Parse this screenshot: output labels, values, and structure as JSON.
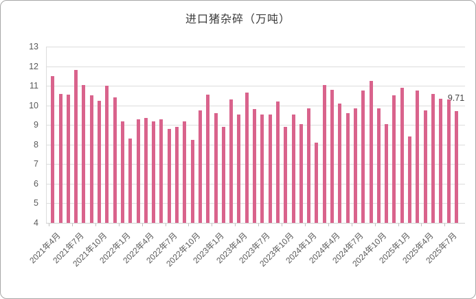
{
  "chart_data": {
    "type": "bar",
    "title": "进口猪杂碎（万吨）",
    "x": [
      "2021年4月",
      "2021年5月",
      "2021年6月",
      "2021年7月",
      "2021年8月",
      "2021年9月",
      "2021年10月",
      "2021年11月",
      "2021年12月",
      "2022年1月",
      "2022年2月",
      "2022年3月",
      "2022年4月",
      "2022年5月",
      "2022年6月",
      "2022年7月",
      "2022年8月",
      "2022年9月",
      "2022年10月",
      "2022年11月",
      "2022年12月",
      "2023年1月",
      "2023年2月",
      "2023年3月",
      "2023年4月",
      "2023年5月",
      "2023年6月",
      "2023年7月",
      "2023年8月",
      "2023年9月",
      "2023年10月",
      "2023年11月",
      "2023年12月",
      "2024年1月",
      "2024年2月",
      "2024年3月",
      "2024年4月",
      "2024年5月",
      "2024年6月",
      "2024年7月",
      "2024年8月",
      "2024年9月",
      "2024年10月",
      "2024年11月",
      "2024年12月",
      "2025年1月",
      "2025年2月",
      "2025年3月",
      "2025年4月",
      "2025年5月",
      "2025年6月",
      "2025年7月",
      "2025年8月"
    ],
    "values": [
      11.5,
      10.6,
      10.55,
      11.8,
      11.05,
      10.5,
      10.25,
      11.0,
      10.4,
      9.2,
      8.3,
      9.3,
      9.35,
      9.2,
      9.3,
      8.8,
      8.9,
      9.2,
      8.25,
      9.75,
      10.55,
      9.6,
      8.9,
      10.3,
      9.55,
      10.65,
      9.8,
      9.55,
      9.55,
      10.2,
      8.9,
      9.55,
      9.05,
      9.85,
      8.1,
      11.05,
      10.8,
      10.1,
      9.6,
      9.85,
      10.75,
      11.25,
      9.85,
      9.05,
      10.5,
      10.9,
      8.4,
      10.75,
      9.75,
      10.6,
      10.35,
      10.3,
      9.71
    ],
    "x_tick_labels": [
      "2021年4月",
      "2021年7月",
      "2021年10月",
      "2022年1月",
      "2022年4月",
      "2022年7月",
      "2022年10月",
      "2023年1月",
      "2023年4月",
      "2023年7月",
      "2023年10月",
      "2024年1月",
      "2024年4月",
      "2024年7月",
      "2024年10月",
      "2025年1月",
      "2025年4月",
      "2025年7月"
    ],
    "x_tick_every": 3,
    "ylim": [
      4,
      13
    ],
    "y_ticks": [
      4,
      5,
      6,
      7,
      8,
      9,
      10,
      11,
      12,
      13
    ],
    "grid": true,
    "legend": false,
    "last_point_label": "9.71",
    "colors": {
      "bar": "#d9638c",
      "gridline": "#dcdcdc",
      "axis_line": "#cfcfcf",
      "tick_mark": "#bfbfbf",
      "tick_label": "#595959",
      "title": "#3a3a3a",
      "data_label": "#404040",
      "frame_border": "#a6a6a6",
      "background": "#ffffff"
    }
  }
}
